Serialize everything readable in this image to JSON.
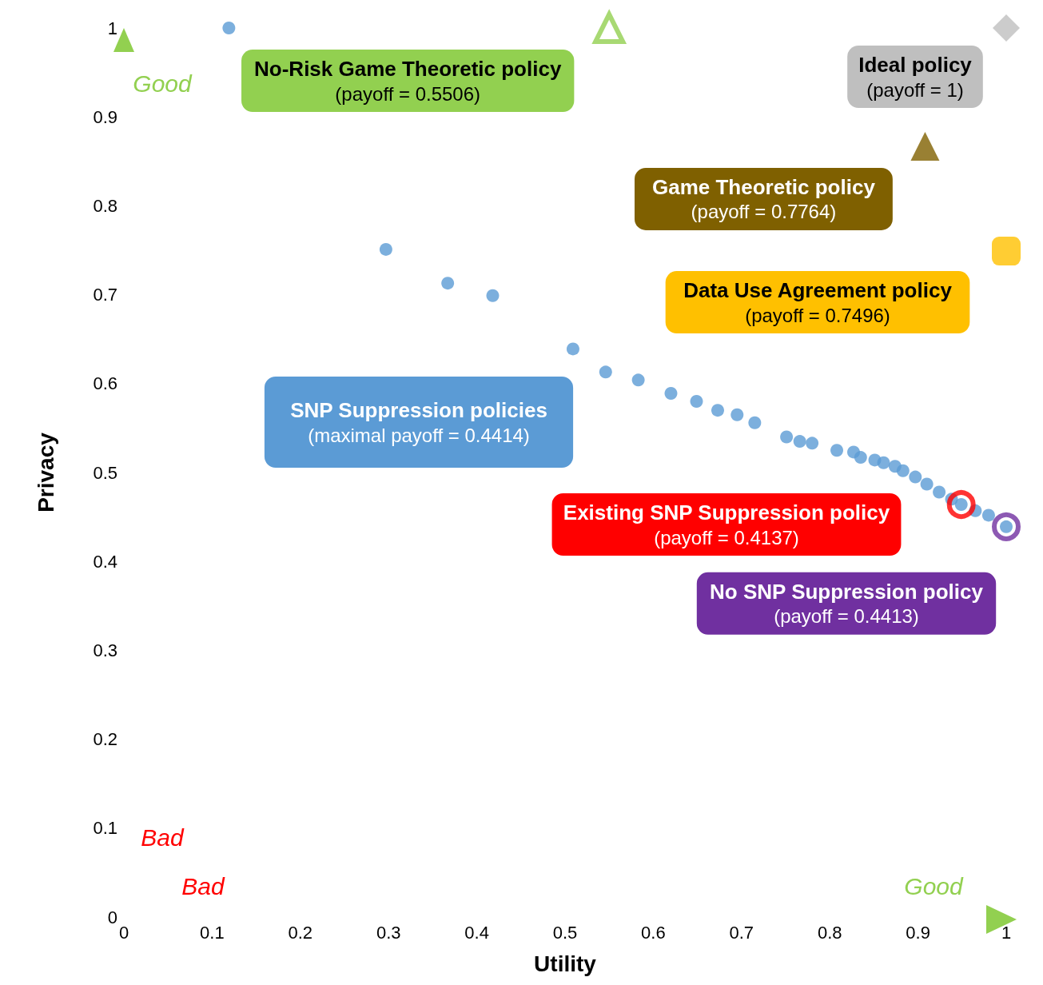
{
  "chart_data": {
    "type": "scatter",
    "xlabel": "Utility",
    "ylabel": "Privacy",
    "xlim": [
      0,
      1
    ],
    "ylim": [
      0,
      1
    ],
    "xticks": [
      0,
      0.1,
      0.2,
      0.3,
      0.4,
      0.5,
      0.6,
      0.7,
      0.8,
      0.9,
      1
    ],
    "yticks": [
      0,
      0.1,
      0.2,
      0.3,
      0.4,
      0.5,
      0.6,
      0.7,
      0.8,
      0.9,
      1
    ],
    "grid": false,
    "series": [
      {
        "color": "#5b9bd5",
        "marker": "circle",
        "x": [
          0.119,
          0.297,
          0.367,
          0.418,
          0.509,
          0.546,
          0.583,
          0.62,
          0.649,
          0.673,
          0.695,
          0.715,
          0.751,
          0.766,
          0.78,
          0.808,
          0.827,
          0.835,
          0.851,
          0.861,
          0.874,
          0.883,
          0.897,
          0.91,
          0.924,
          0.938,
          0.949,
          0.965,
          0.98,
          1.0
        ],
        "values": [
          1.0,
          0.751,
          0.713,
          0.699,
          0.639,
          0.613,
          0.604,
          0.589,
          0.58,
          0.57,
          0.565,
          0.556,
          0.54,
          0.535,
          0.533,
          0.525,
          0.523,
          0.517,
          0.514,
          0.511,
          0.507,
          0.502,
          0.495,
          0.487,
          0.478,
          0.47,
          0.464,
          0.457,
          0.452,
          0.439
        ]
      },
      {
        "color": "#ff0000",
        "marker": "circle",
        "x": [
          0.949
        ],
        "values": [
          0.464
        ]
      },
      {
        "color": "#7030a0",
        "marker": "circle",
        "x": [
          1.0
        ],
        "values": [
          0.439
        ]
      },
      {
        "color": "#92d050",
        "marker": "triangle",
        "x": [
          0.55
        ],
        "values": [
          1.0
        ]
      },
      {
        "color": "#7f6000",
        "marker": "triangle",
        "x": [
          0.908
        ],
        "values": [
          0.867
        ]
      },
      {
        "color": "#ffc000",
        "marker": "square",
        "x": [
          1.0
        ],
        "values": [
          0.749
        ]
      },
      {
        "color": "#bfbfbf",
        "marker": "diamond",
        "x": [
          1.0
        ],
        "values": [
          1.0
        ]
      }
    ],
    "annotations": [
      "SNP Suppression policies\n(maximal payoff = 0.4414)",
      "Existing SNP Suppression policy\n(payoff = 0.4137)",
      {
        "text": "No SNP Suppression policy\n(payoff = 0.4413)",
        "x": 1.0,
        "y": 0.439
      },
      {
        "text": "No-Risk Game Theoretic policy\n(payoff = 0.5506)",
        "x": 0.55,
        "y": 1.0
      },
      {
        "text": "Game Theoretic policy\n(payoff = 0.7764)",
        "x": 0.908,
        "y": 0.867
      },
      {
        "text": "Data Use Agreement policy\n(payoff = 0.7496)",
        "x": 1.0,
        "y": 0.749
      },
      {
        "text": "Ideal policy\n(payoff = 1)",
        "x": 1.0,
        "y": 1.0
      },
      "Good",
      "Bad",
      "Bad",
      "Good"
    ]
  }
}
